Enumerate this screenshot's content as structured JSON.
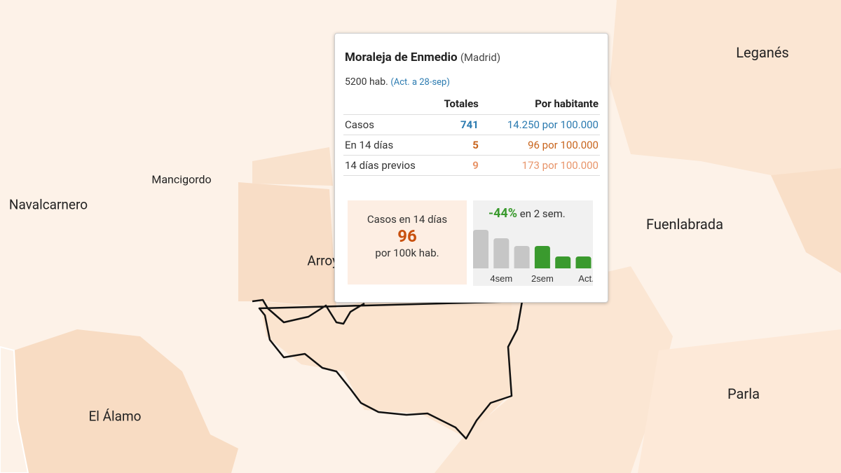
{
  "map": {
    "places": [
      {
        "name": "Leganés"
      },
      {
        "name": "Mancigordo"
      },
      {
        "name": "Navalcarnero"
      },
      {
        "name": "Arroyomolinos"
      },
      {
        "name": "Fuenlabrada"
      },
      {
        "name": "Parla"
      },
      {
        "name": "El Álamo"
      }
    ]
  },
  "tooltip": {
    "title": "Moraleja de Enmedio",
    "region": "(Madrid)",
    "population": "5200 hab.",
    "updated": "(Act. a 28-sep)",
    "table": {
      "headers": [
        "Totales",
        "Por habitante"
      ],
      "rows": [
        [
          "Casos",
          741,
          "14.250 por 100.000"
        ],
        [
          "En 14 días",
          5,
          "96 por 100.000"
        ],
        [
          "14 días previos",
          9,
          "173 por 100.000"
        ]
      ]
    },
    "summary": {
      "label": "Casos en 14 días",
      "value": 96,
      "unit": "por 100k hab."
    },
    "trend": {
      "change": "-44%",
      "period": "en 2 sem.",
      "categories": [
        null,
        "4sem",
        null,
        "2sem",
        null,
        "Act."
      ],
      "values": [
        55,
        43,
        32,
        32,
        17,
        17
      ],
      "colors": [
        "#c6c6c6",
        "#c6c6c6",
        "#c6c6c6",
        "#3a9a2e",
        "#3a9a2e",
        "#3a9a2e"
      ]
    }
  }
}
